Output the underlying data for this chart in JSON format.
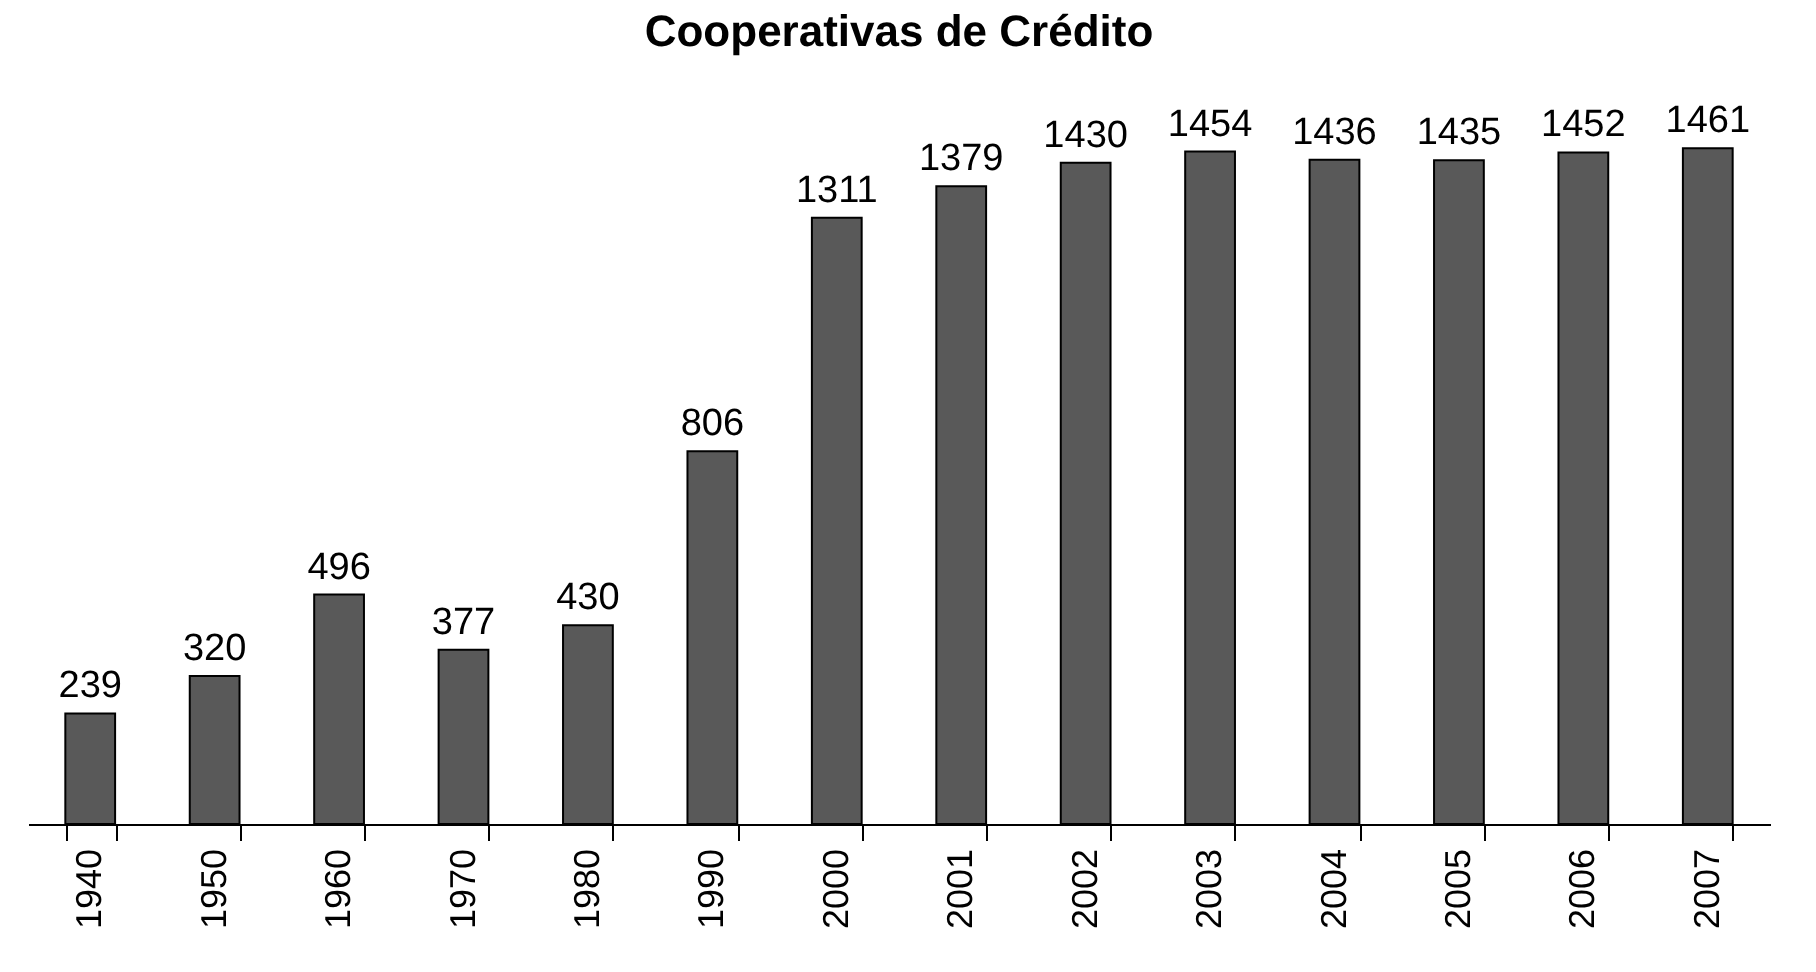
{
  "chart_data": {
    "type": "bar",
    "title": "Cooperativas de Crédito",
    "categories": [
      "1940",
      "1950",
      "1960",
      "1970",
      "1980",
      "1990",
      "2000",
      "2001",
      "2002",
      "2003",
      "2004",
      "2005",
      "2006",
      "2007"
    ],
    "values": [
      239,
      320,
      496,
      377,
      430,
      806,
      1311,
      1379,
      1430,
      1454,
      1436,
      1435,
      1452,
      1461
    ],
    "color": "#595959",
    "data_labels": true
  }
}
